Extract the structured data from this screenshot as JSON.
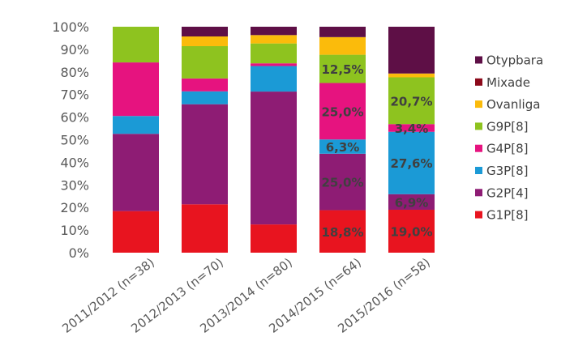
{
  "chart_data": {
    "type": "bar",
    "stacked": true,
    "percent": true,
    "title": "",
    "xlabel": "",
    "ylabel": "",
    "ylim": [
      0,
      100
    ],
    "y_ticks": [
      "0%",
      "10%",
      "20%",
      "30%",
      "40%",
      "50%",
      "60%",
      "70%",
      "80%",
      "90%",
      "100%"
    ],
    "grid": false,
    "legend_position": "right",
    "categories": [
      "2011/2012 (n=38)",
      "2012/2013 (n=70)",
      "2013/2014 (n=80)",
      "2014/2015 (n=64)",
      "2015/2016 (n=58)"
    ],
    "series": [
      {
        "name": "G1P[8]",
        "color": "#e8141f",
        "values": [
          18.4,
          21.4,
          12.5,
          18.8,
          19.0
        ],
        "labels": [
          "",
          "",
          "",
          "18,8%",
          "19,0%"
        ]
      },
      {
        "name": "G2P[4]",
        "color": "#8e1c74",
        "values": [
          34.2,
          44.3,
          58.8,
          25.0,
          6.9
        ],
        "labels": [
          "",
          "",
          "",
          "25,0%",
          "6,9%"
        ]
      },
      {
        "name": "G3P[8]",
        "color": "#1b9ad6",
        "values": [
          7.9,
          5.7,
          11.3,
          6.3,
          27.6
        ],
        "labels": [
          "",
          "",
          "",
          "6,3%",
          "27,6%"
        ]
      },
      {
        "name": "G4P[8]",
        "color": "#e6137f",
        "values": [
          23.7,
          5.7,
          1.2,
          25.0,
          3.4
        ],
        "labels": [
          "",
          "",
          "",
          "25,0%",
          "3,4%"
        ]
      },
      {
        "name": "G9P[8]",
        "color": "#8ec31f",
        "values": [
          15.8,
          14.3,
          8.8,
          12.5,
          20.7
        ],
        "labels": [
          "",
          "",
          "",
          "12,5%",
          "20,7%"
        ]
      },
      {
        "name": "Ovanliga",
        "color": "#fbbb0b",
        "values": [
          0,
          4.3,
          3.7,
          7.8,
          1.7
        ],
        "labels": [
          "",
          "",
          "",
          "",
          ""
        ]
      },
      {
        "name": "Mixade",
        "color": "#8c0a1b",
        "values": [
          0,
          0,
          0,
          0,
          0
        ],
        "labels": [
          "",
          "",
          "",
          "",
          ""
        ]
      },
      {
        "name": "Otypbara",
        "color": "#5e0f46",
        "values": [
          0,
          4.3,
          3.7,
          4.6,
          20.7
        ],
        "labels": [
          "",
          "",
          "",
          "",
          ""
        ]
      }
    ]
  }
}
